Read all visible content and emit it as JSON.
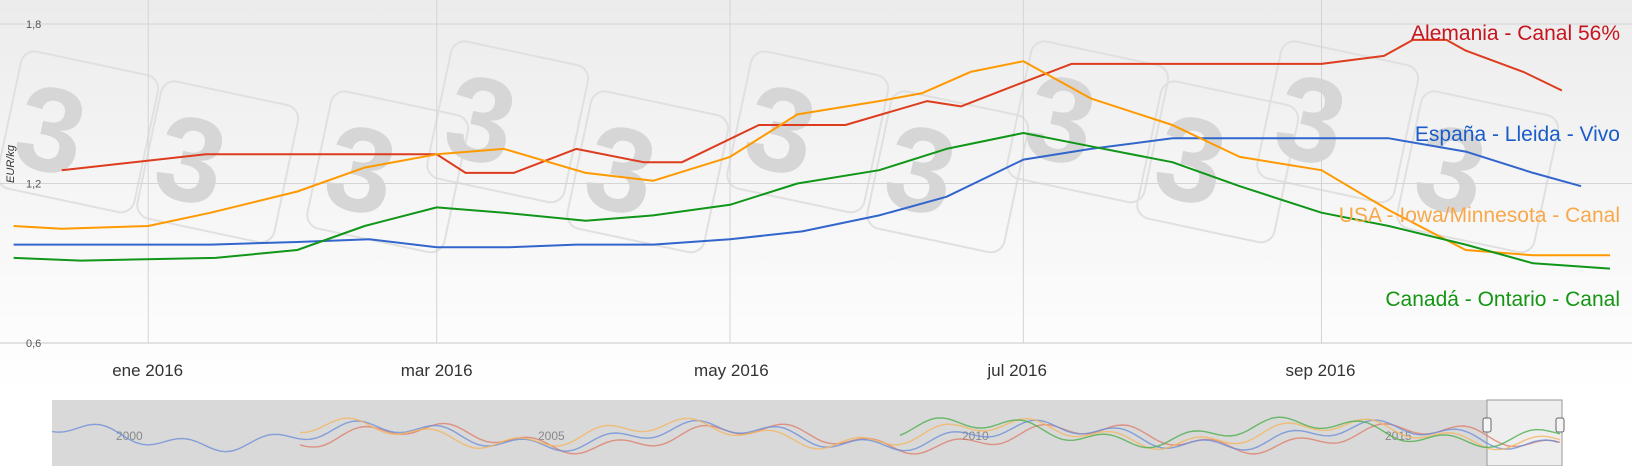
{
  "chart_data": {
    "type": "line",
    "ylabel": "EUR/kg",
    "ylim": [
      0.6,
      1.8
    ],
    "y_ticks": [
      "1,8",
      "1,2",
      "0,6"
    ],
    "y_tick_values": [
      1.8,
      1.2,
      0.6
    ],
    "x_tick_labels": [
      "ene 2016",
      "mar 2016",
      "may 2016",
      "jul 2016",
      "sep 2016"
    ],
    "x_tick_dates": [
      "2016-01-01",
      "2016-03-01",
      "2016-05-01",
      "2016-07-01",
      "2016-09-01"
    ],
    "xlim": [
      "2015-12-07",
      "2016-10-31"
    ],
    "grid": true,
    "legend": "inline labels at right",
    "series": [
      {
        "name": "Alemania - Canal 56%",
        "color": "#dd3c1e",
        "label_color": "#c8141e",
        "x": [
          "2015-12-14",
          "2016-01-13",
          "2016-03-01",
          "2016-03-07",
          "2016-03-17",
          "2016-03-30",
          "2016-04-13",
          "2016-04-21",
          "2016-05-07",
          "2016-05-25",
          "2016-06-11",
          "2016-06-18",
          "2016-06-28",
          "2016-07-11",
          "2016-08-18",
          "2016-09-01",
          "2016-09-14",
          "2016-09-20",
          "2016-09-27",
          "2016-10-01",
          "2016-10-13",
          "2016-10-21"
        ],
        "y": [
          1.25,
          1.31,
          1.31,
          1.24,
          1.24,
          1.33,
          1.28,
          1.28,
          1.42,
          1.42,
          1.51,
          1.49,
          1.56,
          1.65,
          1.65,
          1.65,
          1.68,
          1.74,
          1.74,
          1.7,
          1.62,
          1.55
        ]
      },
      {
        "name": "España - Lleida - Vivo",
        "color": "#3366cc",
        "label_color": "#1a5cc8",
        "x": [
          "2015-12-04",
          "2015-12-18",
          "2016-01-14",
          "2016-02-01",
          "2016-02-16",
          "2016-03-01",
          "2016-03-16",
          "2016-03-30",
          "2016-04-15",
          "2016-05-01",
          "2016-05-16",
          "2016-06-01",
          "2016-06-15",
          "2016-07-01",
          "2016-07-15",
          "2016-08-01",
          "2016-08-15",
          "2016-09-01",
          "2016-09-15",
          "2016-10-01",
          "2016-10-15",
          "2016-10-25"
        ],
        "y": [
          0.97,
          0.97,
          0.97,
          0.98,
          0.99,
          0.96,
          0.96,
          0.97,
          0.97,
          0.99,
          1.02,
          1.08,
          1.15,
          1.29,
          1.33,
          1.37,
          1.37,
          1.37,
          1.37,
          1.32,
          1.24,
          1.19
        ]
      },
      {
        "name": "USA - Iowa/Minnesota - Canal",
        "color": "#ff9900",
        "label_color": "#f7a84a",
        "x": [
          "2015-12-04",
          "2015-12-14",
          "2016-01-01",
          "2016-01-14",
          "2016-02-01",
          "2016-02-15",
          "2016-03-01",
          "2016-03-15",
          "2016-04-01",
          "2016-04-15",
          "2016-05-01",
          "2016-05-15",
          "2016-06-01",
          "2016-06-10",
          "2016-06-20",
          "2016-07-01",
          "2016-07-15",
          "2016-08-01",
          "2016-08-15",
          "2016-09-01",
          "2016-09-15",
          "2016-10-01",
          "2016-10-15",
          "2016-10-31"
        ],
        "y": [
          1.04,
          1.03,
          1.04,
          1.09,
          1.17,
          1.26,
          1.31,
          1.33,
          1.24,
          1.21,
          1.3,
          1.46,
          1.51,
          1.54,
          1.62,
          1.66,
          1.52,
          1.42,
          1.3,
          1.25,
          1.1,
          0.95,
          0.93,
          0.93
        ]
      },
      {
        "name": "Canadá - Ontario - Canal",
        "color": "#109618",
        "label_color": "#149614",
        "x": [
          "2015-12-04",
          "2015-12-18",
          "2016-01-15",
          "2016-02-01",
          "2016-02-15",
          "2016-03-01",
          "2016-03-15",
          "2016-04-01",
          "2016-04-15",
          "2016-05-01",
          "2016-05-15",
          "2016-06-01",
          "2016-06-15",
          "2016-07-01",
          "2016-07-15",
          "2016-08-01",
          "2016-08-15",
          "2016-09-01",
          "2016-09-15",
          "2016-10-01",
          "2016-10-15",
          "2016-10-31"
        ],
        "y": [
          0.92,
          0.91,
          0.92,
          0.95,
          1.04,
          1.11,
          1.09,
          1.06,
          1.08,
          1.12,
          1.2,
          1.25,
          1.33,
          1.39,
          1.34,
          1.28,
          1.19,
          1.09,
          1.04,
          0.97,
          0.9,
          0.88
        ]
      }
    ]
  },
  "navigator": {
    "year_labels": [
      "2000",
      "2005",
      "2010",
      "2015"
    ]
  }
}
